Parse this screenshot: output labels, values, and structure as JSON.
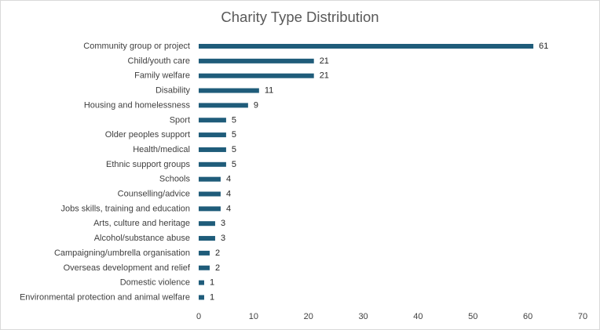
{
  "chart_data": {
    "type": "bar",
    "orientation": "horizontal",
    "title": "Charity Type Distribution",
    "categories": [
      "Community group or project",
      "Child/youth care",
      "Family welfare",
      "Disability",
      "Housing and homelessness",
      "Sport",
      "Older peoples support",
      "Health/medical",
      "Ethnic support groups",
      "Schools",
      "Counselling/advice",
      "Jobs skills, training and education",
      "Arts, culture and heritage",
      "Alcohol/substance abuse",
      "Campaigning/umbrella organisation",
      "Overseas development and relief",
      "Domestic violence",
      "Environmental protection and animal welfare"
    ],
    "values": [
      61,
      21,
      21,
      11,
      9,
      5,
      5,
      5,
      5,
      4,
      4,
      4,
      3,
      3,
      2,
      2,
      1,
      1
    ],
    "xlim": [
      0,
      70
    ],
    "xticks": [
      0,
      10,
      20,
      30,
      40,
      50,
      60,
      70
    ],
    "grid": false,
    "legend": "none",
    "data_labels": true,
    "bar_color": "#1f5c7a"
  }
}
